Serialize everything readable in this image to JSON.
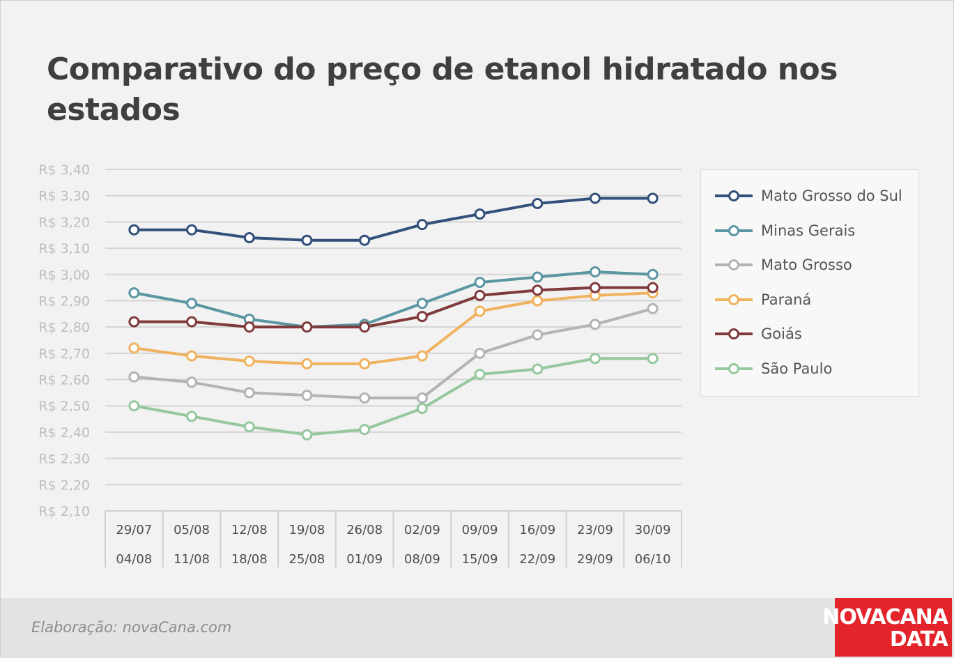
{
  "title": "Comparativo do preço de etanol hidratado nos estados",
  "footer": {
    "credit": "Elaboração: novaCana.com",
    "brand_line1": "NOVACANA",
    "brand_line2": "DATA",
    "brand_color": "#e3242b"
  },
  "chart_data": {
    "type": "line",
    "title": "Comparativo do preço de etanol hidratado nos estados",
    "xlabel": "",
    "ylabel": "",
    "ylim": [
      2.1,
      3.4
    ],
    "y_ticks": [
      "R$ 3,40",
      "R$ 3,30",
      "R$ 3,20",
      "R$ 3,10",
      "R$ 3,00",
      "R$ 2,90",
      "R$ 2,80",
      "R$ 2,70",
      "R$ 2,60",
      "R$ 2,50",
      "R$ 2,40",
      "R$ 2,30",
      "R$ 2,20",
      "R$ 2,10"
    ],
    "y_tick_values": [
      3.4,
      3.3,
      3.2,
      3.1,
      3.0,
      2.9,
      2.8,
      2.7,
      2.6,
      2.5,
      2.4,
      2.3,
      2.2,
      2.1
    ],
    "grid": true,
    "legend_position": "right",
    "categories": [
      {
        "start": "29/07",
        "end": "04/08"
      },
      {
        "start": "05/08",
        "end": "11/08"
      },
      {
        "start": "12/08",
        "end": "18/08"
      },
      {
        "start": "19/08",
        "end": "25/08"
      },
      {
        "start": "26/08",
        "end": "01/09"
      },
      {
        "start": "02/09",
        "end": "08/09"
      },
      {
        "start": "09/09",
        "end": "15/09"
      },
      {
        "start": "16/09",
        "end": "22/09"
      },
      {
        "start": "23/09",
        "end": "29/09"
      },
      {
        "start": "30/09",
        "end": "06/10"
      }
    ],
    "series": [
      {
        "name": "Mato Grosso do Sul",
        "color": "#33507a",
        "values": [
          3.17,
          3.17,
          3.14,
          3.13,
          3.13,
          3.19,
          3.23,
          3.27,
          3.29,
          3.29
        ]
      },
      {
        "name": "Minas Gerais",
        "color": "#5b96a3",
        "values": [
          2.93,
          2.89,
          2.83,
          2.8,
          2.81,
          2.89,
          2.97,
          2.99,
          3.01,
          3.0
        ]
      },
      {
        "name": "Mato Grosso",
        "color": "#b3b3b3",
        "values": [
          2.61,
          2.59,
          2.55,
          2.54,
          2.53,
          2.53,
          2.7,
          2.77,
          2.81,
          2.87
        ]
      },
      {
        "name": "Paraná",
        "color": "#f0b25f",
        "values": [
          2.72,
          2.69,
          2.67,
          2.66,
          2.66,
          2.69,
          2.86,
          2.9,
          2.92,
          2.93
        ]
      },
      {
        "name": "Goiás",
        "color": "#7f3a3c",
        "values": [
          2.82,
          2.82,
          2.8,
          2.8,
          2.8,
          2.84,
          2.92,
          2.94,
          2.95,
          2.95
        ]
      },
      {
        "name": "São Paulo",
        "color": "#95c89e",
        "values": [
          2.5,
          2.46,
          2.42,
          2.39,
          2.41,
          2.49,
          2.62,
          2.64,
          2.68,
          2.68
        ]
      }
    ]
  }
}
